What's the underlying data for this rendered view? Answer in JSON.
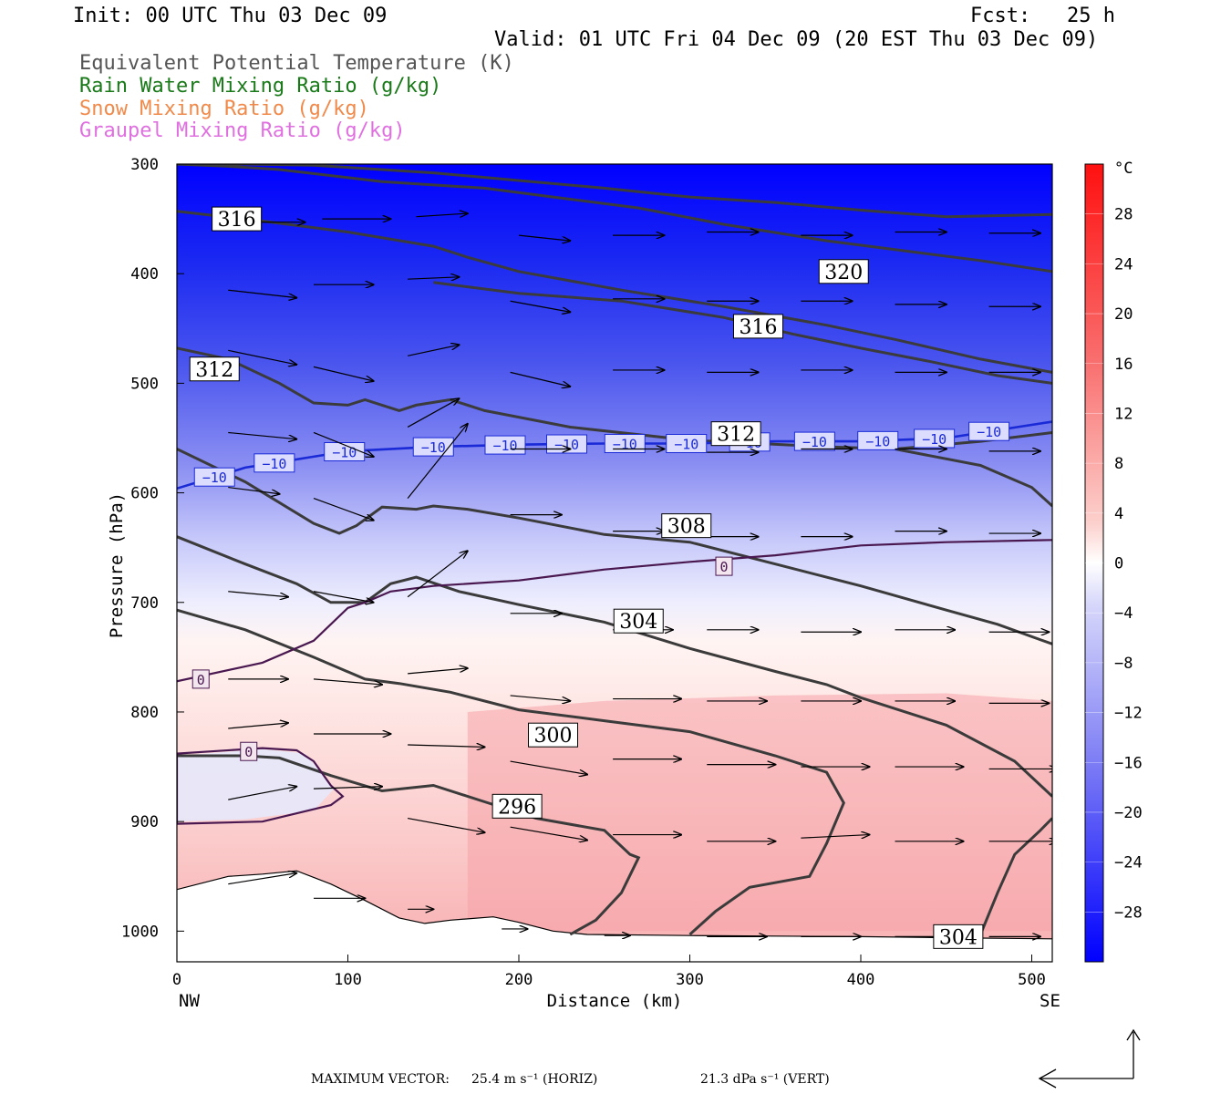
{
  "header": {
    "init": "Init: 00 UTC Thu 03 Dec 09",
    "fcst": "Fcst:   25 h",
    "valid": "Valid: 01 UTC Fri 04 Dec 09 (20 EST Thu 03 Dec 09)"
  },
  "legend": [
    {
      "label": "Equivalent Potential Temperature (K)",
      "color": "#555555"
    },
    {
      "label": "Rain Water Mixing Ratio (g/kg)",
      "color": "#1a7a1a"
    },
    {
      "label": "Snow Mixing Ratio (g/kg)",
      "color": "#f08a4b"
    },
    {
      "label": "Graupel Mixing Ratio (g/kg)",
      "color": "#e070e0"
    }
  ],
  "chart_data": {
    "type": "cross-section",
    "xlabel": "Distance (km)",
    "ylabel": "Pressure (hPa)",
    "x_ticks": [
      "0",
      "100",
      "200",
      "300",
      "400",
      "500"
    ],
    "x_tick_values": [
      0,
      100,
      200,
      300,
      400,
      500
    ],
    "x_end_labels": {
      "left": "NW",
      "right": "SE"
    },
    "y_ticks": [
      "300",
      "400",
      "500",
      "600",
      "700",
      "800",
      "900",
      "1000"
    ],
    "y_tick_values": [
      300,
      400,
      500,
      600,
      700,
      800,
      900,
      1000
    ],
    "xlim": [
      0,
      512
    ],
    "ylim": [
      300,
      1028
    ],
    "colorbar": {
      "unit": "°C",
      "labels": [
        "28",
        "24",
        "20",
        "16",
        "12",
        "8",
        "4",
        "0",
        "−4",
        "−8",
        "−12",
        "−16",
        "−20",
        "−24",
        "−28"
      ],
      "values": [
        28,
        24,
        20,
        16,
        12,
        8,
        4,
        0,
        -4,
        -8,
        -12,
        -16,
        -20,
        -24,
        -28
      ],
      "range": [
        -32,
        32
      ]
    },
    "theta_e_contours": [
      {
        "level": "320",
        "points": [
          [
            0,
            300
          ],
          [
            40,
            300
          ],
          [
            80,
            301
          ],
          [
            100,
            303
          ],
          [
            150,
            308
          ],
          [
            200,
            315
          ],
          [
            250,
            322
          ],
          [
            300,
            330
          ],
          [
            350,
            335
          ],
          [
            400,
            342
          ],
          [
            450,
            348
          ],
          [
            512,
            346
          ]
        ]
      },
      {
        "level": "320",
        "points": [
          [
            0,
            300
          ],
          [
            30,
            302
          ],
          [
            60,
            305
          ],
          [
            120,
            316
          ],
          [
            180,
            322
          ],
          [
            220,
            330
          ],
          [
            270,
            340
          ],
          [
            320,
            355
          ],
          [
            380,
            370
          ],
          [
            420,
            378
          ],
          [
            470,
            388
          ],
          [
            512,
            398
          ]
        ]
      },
      {
        "level": "316",
        "points": [
          [
            0,
            343
          ],
          [
            50,
            352
          ],
          [
            100,
            362
          ],
          [
            150,
            375
          ],
          [
            170,
            385
          ],
          [
            200,
            398
          ],
          [
            260,
            415
          ],
          [
            320,
            430
          ],
          [
            380,
            447
          ],
          [
            420,
            460
          ],
          [
            470,
            478
          ],
          [
            512,
            490
          ]
        ]
      },
      {
        "level": "316",
        "points": [
          [
            150,
            408
          ],
          [
            200,
            418
          ],
          [
            260,
            425
          ],
          [
            320,
            440
          ],
          [
            360,
            455
          ],
          [
            400,
            468
          ],
          [
            440,
            480
          ],
          [
            480,
            493
          ],
          [
            512,
            500
          ]
        ]
      },
      {
        "level": "312",
        "points": [
          [
            0,
            468
          ],
          [
            30,
            478
          ],
          [
            60,
            500
          ],
          [
            80,
            518
          ],
          [
            100,
            520
          ],
          [
            110,
            515
          ],
          [
            120,
            520
          ],
          [
            130,
            525
          ],
          [
            140,
            520
          ],
          [
            160,
            515
          ],
          [
            180,
            525
          ],
          [
            230,
            540
          ],
          [
            300,
            552
          ],
          [
            380,
            558
          ],
          [
            420,
            560
          ],
          [
            470,
            553
          ],
          [
            512,
            545
          ]
        ]
      },
      {
        "level": "312",
        "points": [
          [
            420,
            560
          ],
          [
            470,
            575
          ],
          [
            500,
            595
          ],
          [
            512,
            612
          ]
        ]
      },
      {
        "level": "308",
        "points": [
          [
            0,
            560
          ],
          [
            40,
            590
          ],
          [
            80,
            628
          ],
          [
            95,
            637
          ],
          [
            105,
            630
          ],
          [
            120,
            613
          ],
          [
            140,
            615
          ],
          [
            150,
            612
          ],
          [
            170,
            615
          ],
          [
            200,
            623
          ],
          [
            250,
            638
          ],
          [
            300,
            645
          ],
          [
            350,
            665
          ],
          [
            400,
            685
          ],
          [
            450,
            707
          ],
          [
            480,
            720
          ],
          [
            512,
            738
          ]
        ]
      },
      {
        "level": "304",
        "points": [
          [
            0,
            640
          ],
          [
            40,
            665
          ],
          [
            70,
            683
          ],
          [
            90,
            700
          ],
          [
            110,
            700
          ],
          [
            125,
            683
          ],
          [
            140,
            677
          ],
          [
            165,
            690
          ],
          [
            200,
            702
          ],
          [
            250,
            718
          ],
          [
            300,
            742
          ],
          [
            350,
            763
          ],
          [
            380,
            775
          ],
          [
            400,
            787
          ],
          [
            450,
            812
          ],
          [
            490,
            845
          ],
          [
            512,
            877
          ]
        ]
      },
      {
        "level": "300",
        "points": [
          [
            0,
            707
          ],
          [
            40,
            725
          ],
          [
            80,
            750
          ],
          [
            110,
            770
          ],
          [
            130,
            774
          ],
          [
            160,
            782
          ],
          [
            200,
            798
          ],
          [
            250,
            808
          ],
          [
            300,
            818
          ],
          [
            350,
            840
          ],
          [
            380,
            855
          ],
          [
            390,
            883
          ],
          [
            380,
            920
          ],
          [
            370,
            950
          ],
          [
            335,
            960
          ],
          [
            315,
            982
          ],
          [
            300,
            1003
          ]
        ]
      },
      {
        "level": "296",
        "points": [
          [
            0,
            840
          ],
          [
            40,
            840
          ],
          [
            60,
            842
          ],
          [
            90,
            858
          ],
          [
            120,
            872
          ],
          [
            150,
            867
          ],
          [
            180,
            882
          ],
          [
            210,
            897
          ],
          [
            250,
            908
          ],
          [
            265,
            930
          ],
          [
            270,
            933
          ],
          [
            260,
            965
          ],
          [
            245,
            990
          ],
          [
            230,
            1003
          ]
        ]
      },
      {
        "level": "304",
        "points": [
          [
            512,
            897
          ],
          [
            505,
            908
          ],
          [
            490,
            930
          ],
          [
            480,
            965
          ],
          [
            470,
            1003
          ]
        ]
      }
    ],
    "contour_labels": [
      {
        "text": "316",
        "x": 35,
        "y": 350
      },
      {
        "text": "320",
        "x": 390,
        "y": 398
      },
      {
        "text": "316",
        "x": 340,
        "y": 448
      },
      {
        "text": "312",
        "x": 22,
        "y": 487
      },
      {
        "text": "312",
        "x": 327,
        "y": 546
      },
      {
        "text": "308",
        "x": 298,
        "y": 630
      },
      {
        "text": "304",
        "x": 270,
        "y": 717
      },
      {
        "text": "300",
        "x": 220,
        "y": 821
      },
      {
        "text": "296",
        "x": 199,
        "y": 886
      },
      {
        "text": "304",
        "x": 457,
        "y": 1005
      }
    ],
    "isotherm_minus10": {
      "level": "−10",
      "points": [
        [
          0,
          596
        ],
        [
          40,
          577
        ],
        [
          80,
          567
        ],
        [
          100,
          562
        ],
        [
          150,
          558
        ],
        [
          200,
          556
        ],
        [
          250,
          555
        ],
        [
          300,
          555
        ],
        [
          350,
          553
        ],
        [
          400,
          553
        ],
        [
          450,
          550
        ],
        [
          512,
          535
        ]
      ],
      "label_x": [
        22,
        57,
        98,
        150,
        192,
        228,
        262,
        298,
        335,
        373,
        410,
        443,
        475
      ]
    },
    "isotherm_zero": [
      {
        "level": "0",
        "points": [
          [
            0,
            772
          ],
          [
            50,
            755
          ],
          [
            80,
            735
          ],
          [
            100,
            705
          ],
          [
            110,
            700
          ],
          [
            125,
            690
          ],
          [
            150,
            685
          ],
          [
            200,
            680
          ],
          [
            250,
            670
          ],
          [
            300,
            663
          ],
          [
            350,
            657
          ],
          [
            400,
            648
          ],
          [
            450,
            645
          ],
          [
            512,
            643
          ]
        ]
      },
      {
        "level": "0",
        "points": [
          [
            0,
            838
          ],
          [
            20,
            836
          ],
          [
            50,
            833
          ],
          [
            70,
            835
          ],
          [
            80,
            845
          ],
          [
            90,
            867
          ],
          [
            97,
            877
          ],
          [
            90,
            885
          ],
          [
            50,
            900
          ],
          [
            0,
            902
          ]
        ]
      }
    ],
    "zero_labels": [
      {
        "text": "0",
        "x": 14,
        "y": 770
      },
      {
        "text": "0",
        "x": 42,
        "y": 836
      },
      {
        "text": "0",
        "x": 320,
        "y": 667
      }
    ],
    "terrain": [
      [
        0,
        962
      ],
      [
        30,
        950
      ],
      [
        50,
        948
      ],
      [
        70,
        945
      ],
      [
        90,
        957
      ],
      [
        110,
        972
      ],
      [
        130,
        988
      ],
      [
        145,
        993
      ],
      [
        160,
        990
      ],
      [
        185,
        987
      ],
      [
        200,
        992
      ],
      [
        220,
        1000
      ],
      [
        240,
        1003
      ],
      [
        300,
        1004
      ],
      [
        400,
        1005
      ],
      [
        450,
        1006
      ],
      [
        512,
        1007
      ]
    ],
    "vectors_note": "Wind vectors (circulation)",
    "max_vector": {
      "label": "MAXIMUM VECTOR:",
      "horiz": "25.4 m s⁻¹ (HORIZ)",
      "vert": "21.3 dPa s⁻¹ (VERT)"
    }
  }
}
